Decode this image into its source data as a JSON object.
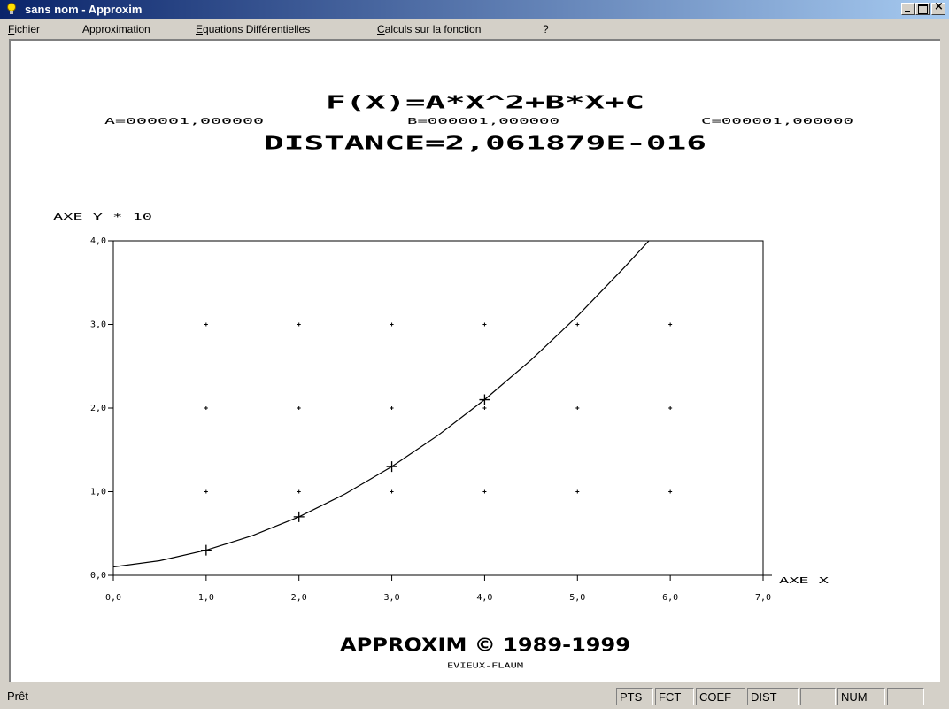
{
  "window": {
    "title": "sans nom - Approxim"
  },
  "menu": [
    "Fichier",
    "Approximation",
    "Equations Différentielles",
    "Calculs sur la fonction",
    "?"
  ],
  "chart_data": {
    "type": "line",
    "title": "F(X)=A*X^2+B*X+C",
    "coefficients": [
      "A=000001,000000",
      "B=000001,000000",
      "C=000001,000000"
    ],
    "subtitle": "DISTANCE=2,061879E-016",
    "x_label": "AXE X",
    "y_label": "AXE Y * 10",
    "xlim": [
      0,
      7
    ],
    "ylim": [
      0,
      4
    ],
    "xticks": [
      {
        "value": 0,
        "label": "0,0"
      },
      {
        "value": 1,
        "label": "1,0"
      },
      {
        "value": 2,
        "label": "2,0"
      },
      {
        "value": 3,
        "label": "3,0"
      },
      {
        "value": 4,
        "label": "4,0"
      },
      {
        "value": 5,
        "label": "5,0"
      },
      {
        "value": 6,
        "label": "6,0"
      },
      {
        "value": 7,
        "label": "7,0"
      }
    ],
    "yticks": [
      {
        "value": 0,
        "label": "0,0"
      },
      {
        "value": 1,
        "label": "1,0"
      },
      {
        "value": 2,
        "label": "2,0"
      },
      {
        "value": 3,
        "label": "3,0"
      },
      {
        "value": 4,
        "label": "4,0"
      }
    ],
    "grid": true,
    "series": [
      {
        "color": "#000000",
        "x": [
          0,
          0.5,
          1,
          1.5,
          2,
          2.5,
          3,
          3.5,
          4,
          4.5,
          5,
          5.5,
          5.77
        ],
        "values": [
          0.1,
          0.175,
          0.3,
          0.475,
          0.7,
          0.975,
          1.3,
          1.675,
          2.1,
          2.575,
          3.1,
          3.675,
          4.0
        ]
      },
      {
        "color": "#000000",
        "marker": "plus",
        "x": [
          1,
          2,
          3,
          4
        ],
        "values": [
          0.3,
          0.7,
          1.3,
          2.1
        ]
      }
    ]
  },
  "footer": {
    "title": "APPROXIM © 1989-1999",
    "author": "EVIEUX-FLAUM"
  },
  "status_bar": {
    "text": "Prêt",
    "panes": [
      "PTS",
      "FCT",
      "COEF",
      "DIST",
      "NUM"
    ]
  }
}
